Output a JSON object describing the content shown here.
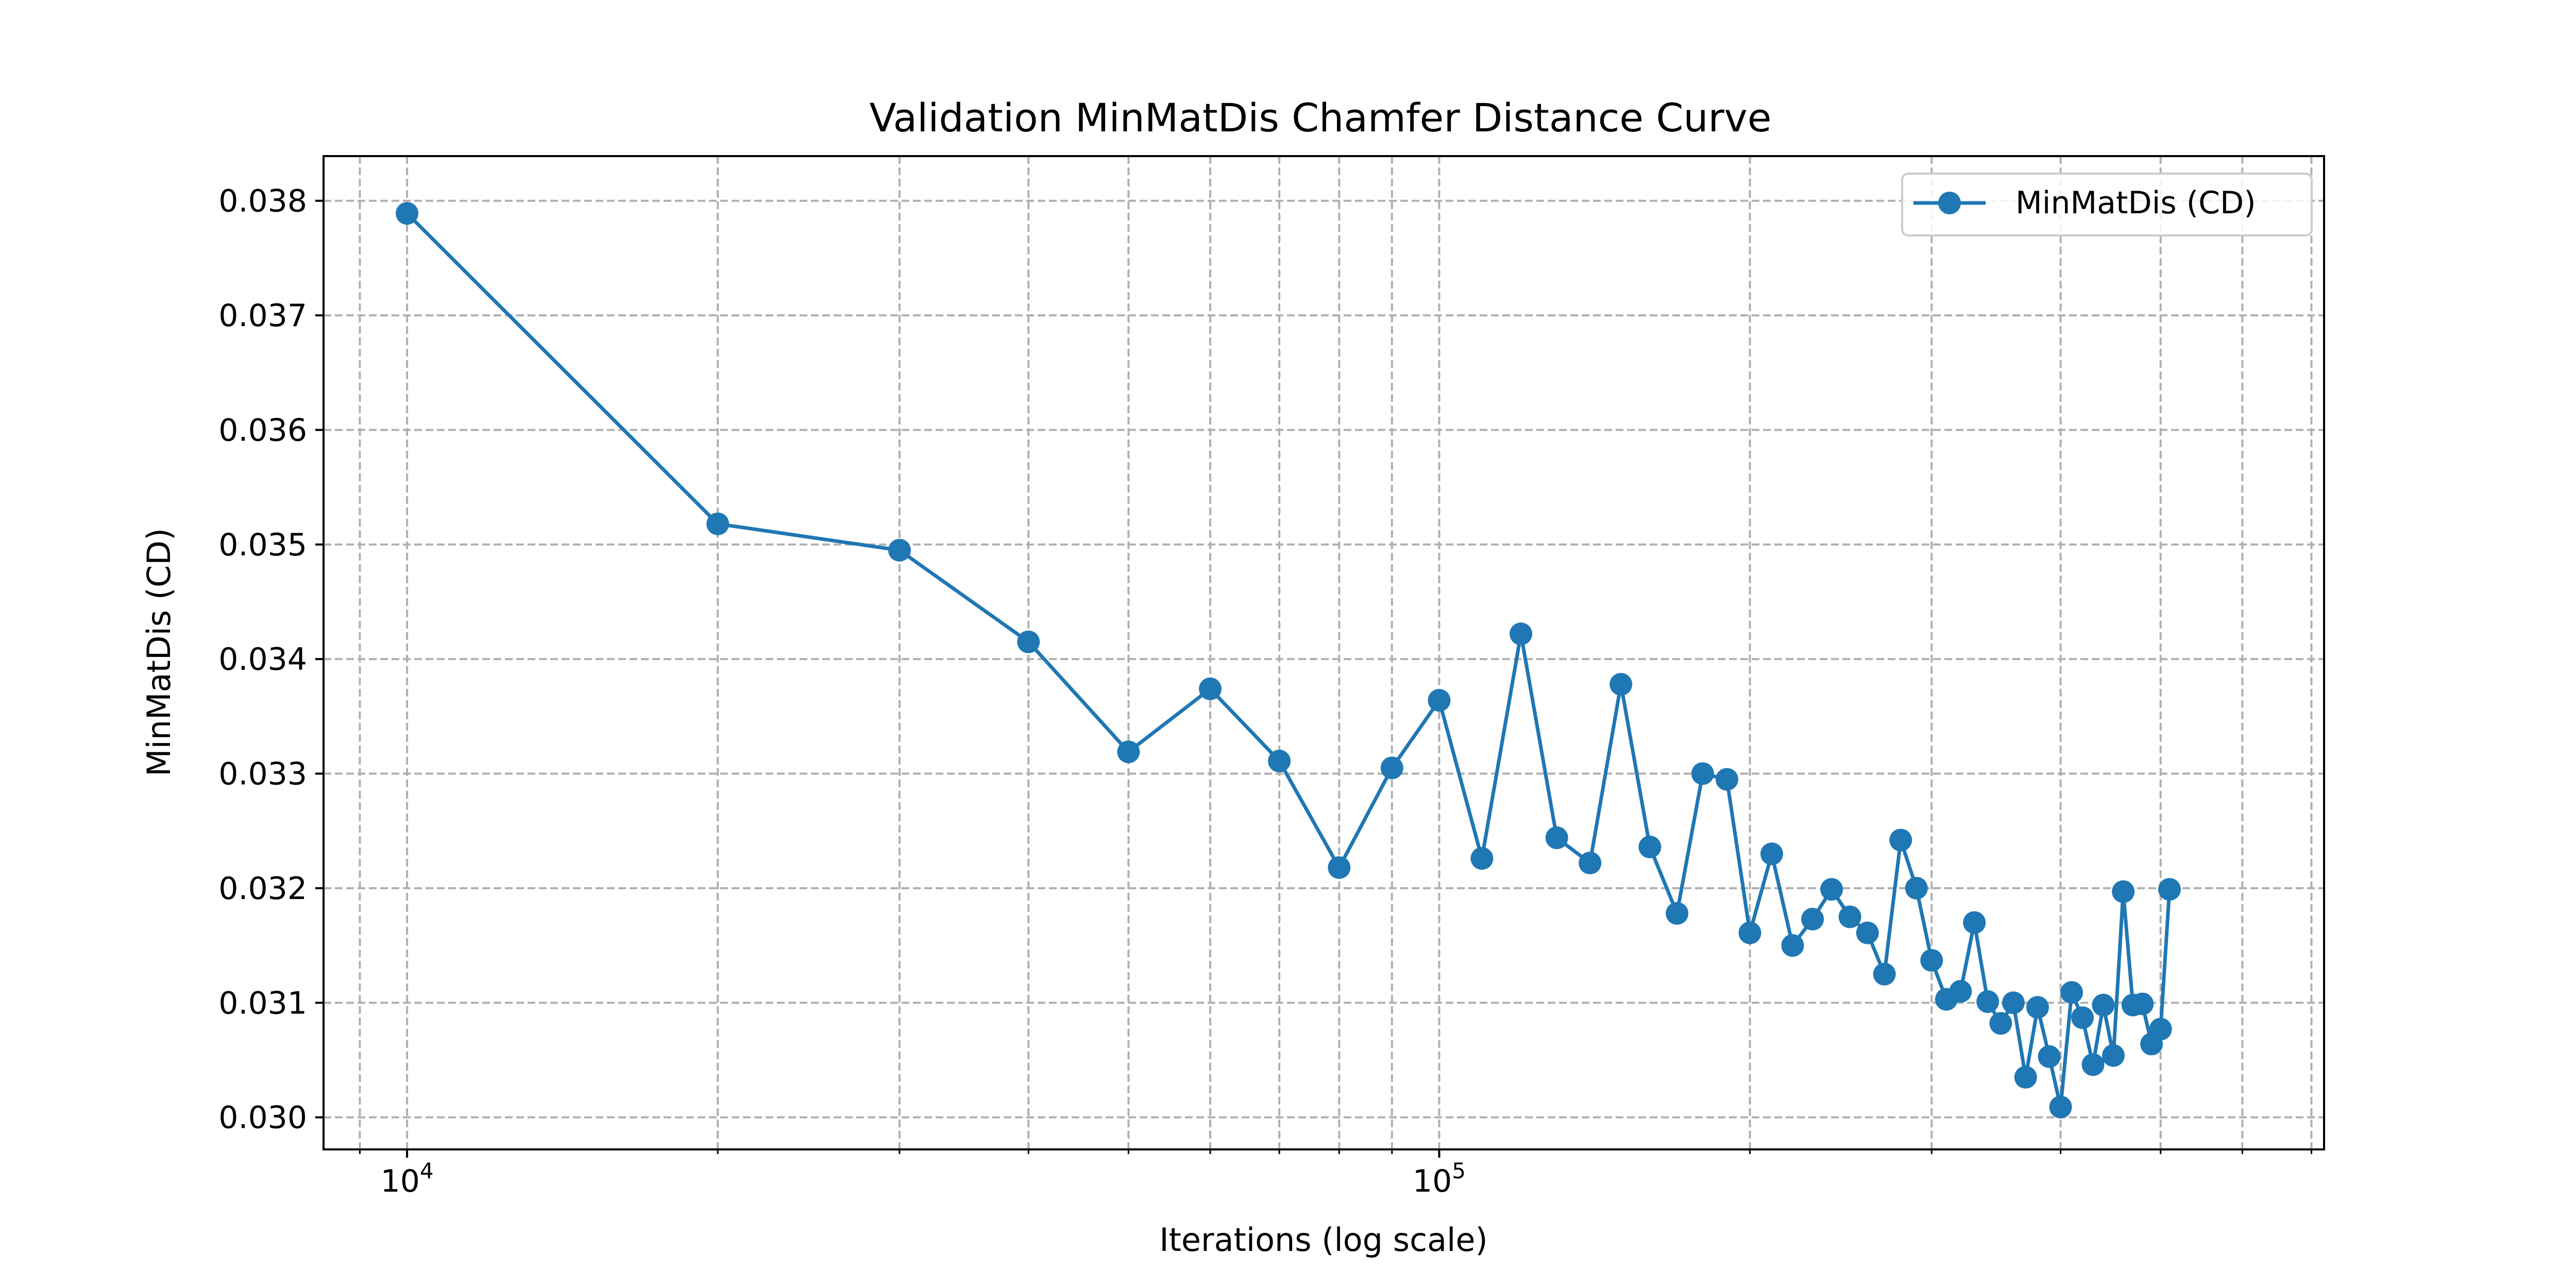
{
  "chart_data": {
    "type": "line",
    "title": "Validation MinMatDis Chamfer Distance Curve",
    "xlabel": "Iterations (log scale)",
    "ylabel": "MinMatDis (CD)",
    "x_scale": "log",
    "xlim": [
      8300,
      720000
    ],
    "ylim": [
      0.02972,
      0.03839
    ],
    "grid": true,
    "grid_style": "dashed",
    "legend_position": "top-right",
    "x_major_ticks": [
      {
        "value": 10000,
        "base": "10",
        "exp": "4"
      },
      {
        "value": 100000,
        "base": "10",
        "exp": "5"
      }
    ],
    "x_minor_ticks": [
      9000,
      20000,
      30000,
      40000,
      50000,
      60000,
      70000,
      80000,
      90000,
      200000,
      300000,
      400000,
      500000,
      600000,
      700000
    ],
    "y_ticks": [
      "0.030",
      "0.031",
      "0.032",
      "0.033",
      "0.034",
      "0.035",
      "0.036",
      "0.037",
      "0.038"
    ],
    "series": [
      {
        "name": "MinMatDis (CD)",
        "color": "#1f77b4",
        "marker": "circle",
        "x": [
          10000,
          20000,
          30000,
          40000,
          50000,
          60000,
          70000,
          80000,
          90000,
          100000,
          110000,
          120000,
          130000,
          140000,
          150000,
          160000,
          170000,
          180000,
          190000,
          200000,
          210000,
          220000,
          230000,
          240000,
          250000,
          260000,
          270000,
          280000,
          290000,
          300000,
          310000,
          320000,
          330000,
          340000,
          350000,
          360000,
          370000,
          380000,
          390000,
          400000,
          410000,
          420000,
          430000,
          440000,
          450000,
          460000,
          470000,
          480000,
          490000,
          500000,
          510000
        ],
        "y": [
          0.03789,
          0.03518,
          0.03495,
          0.03415,
          0.03319,
          0.03374,
          0.03311,
          0.03218,
          0.03305,
          0.03364,
          0.03226,
          0.03422,
          0.03244,
          0.03222,
          0.03378,
          0.03236,
          0.03178,
          0.033,
          0.03295,
          0.03161,
          0.0323,
          0.0315,
          0.03173,
          0.03199,
          0.03175,
          0.03161,
          0.03125,
          0.03242,
          0.032,
          0.03137,
          0.03103,
          0.0311,
          0.0317,
          0.03101,
          0.03082,
          0.031,
          0.03035,
          0.03096,
          0.03053,
          0.03009,
          0.03109,
          0.03087,
          0.03046,
          0.03098,
          0.03054,
          0.03197,
          0.03098,
          0.03099,
          0.03064,
          0.03077,
          0.03199
        ]
      }
    ]
  }
}
